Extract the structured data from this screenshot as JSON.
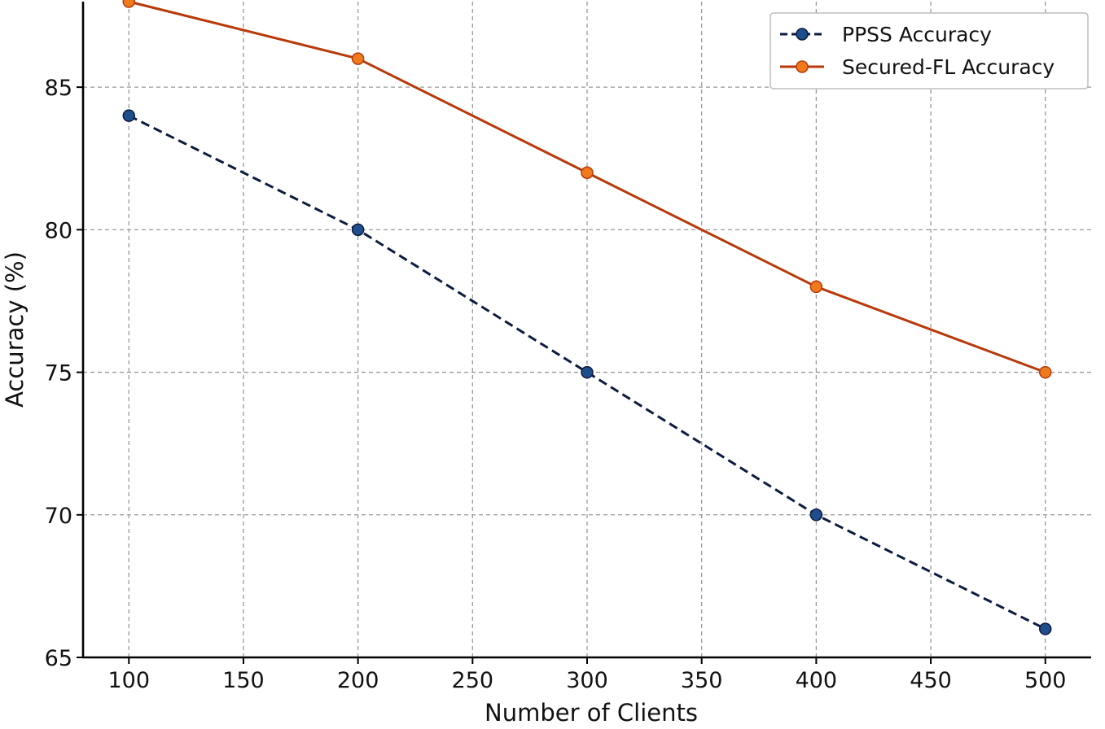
{
  "chart_data": {
    "type": "line",
    "title": "",
    "xlabel": "Number of Clients",
    "ylabel": "Accuracy (%)",
    "x": [
      100,
      200,
      300,
      400,
      500
    ],
    "xlim": [
      80,
      520
    ],
    "ylim": [
      65,
      88
    ],
    "xticks": [
      100,
      150,
      200,
      250,
      300,
      350,
      400,
      450,
      500
    ],
    "yticks": [
      65,
      70,
      75,
      80,
      85
    ],
    "grid": true,
    "legend_position": "top-right",
    "series": [
      {
        "name": "PPSS Accuracy",
        "values": [
          84,
          80,
          75,
          70,
          66
        ],
        "color": "#0d1b3e",
        "marker_color": "#1f4e8c",
        "line_style": "dashed"
      },
      {
        "name": "Secured-FL Accuracy",
        "values": [
          88,
          86,
          82,
          78,
          75
        ],
        "color": "#b83a0a",
        "marker_color": "#f07a1e",
        "line_style": "solid"
      }
    ]
  }
}
